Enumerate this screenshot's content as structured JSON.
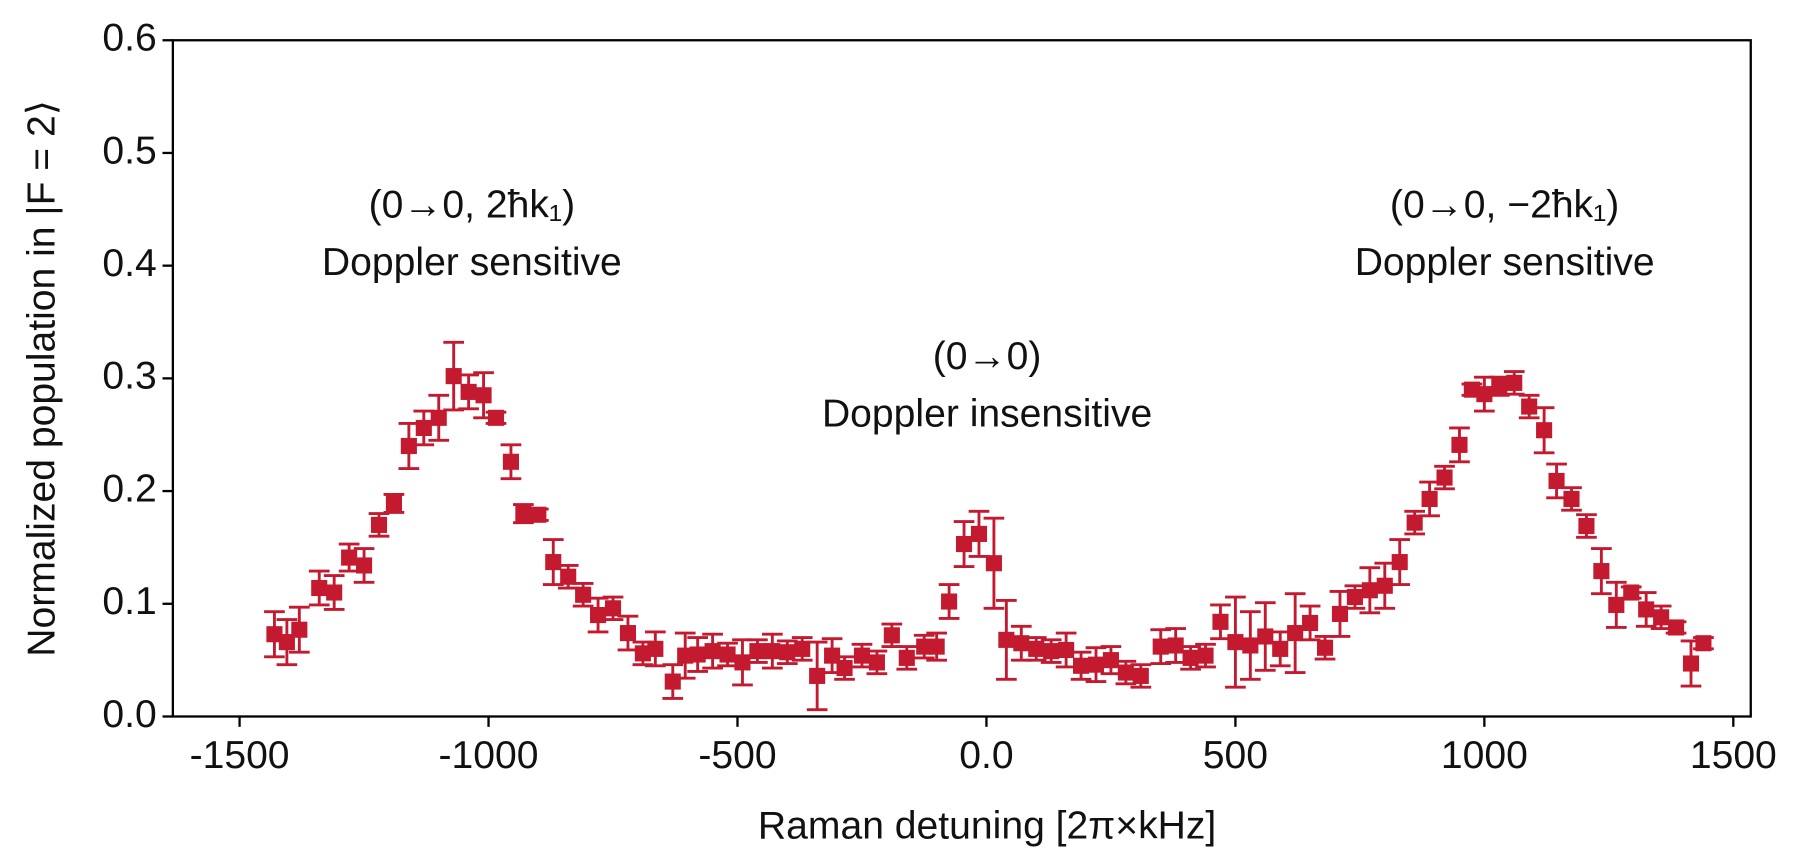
{
  "chart_data": {
    "type": "scatter",
    "xlabel": "Raman detuning [2π×kHz]",
    "ylabel": "Normalized population in |F = 2⟩",
    "annotations": [
      "(0→0, 2ħk₁)",
      "Doppler sensitive",
      "(0→0)",
      "Doppler insensitive",
      "(0→0, −2ħk₁)",
      "Doppler sensitive"
    ],
    "xlim": [
      -1634,
      1535
    ],
    "ylim": [
      0,
      0.6
    ],
    "xticks": [
      -1500,
      -1000,
      -500,
      {
        "value": 0,
        "label": "0.0"
      },
      500,
      1000,
      1500
    ],
    "yticks": [
      {
        "value": 0,
        "label": "0.0"
      },
      0.1,
      0.2,
      0.3,
      0.4,
      0.5,
      0.6
    ],
    "color": "#c41a30",
    "x": [
      -1430,
      -1405,
      -1380,
      -1340,
      -1310,
      -1280,
      -1250,
      -1220,
      -1190,
      -1160,
      -1130,
      -1100,
      -1070,
      -1040,
      -1010,
      -985,
      -955,
      -930,
      -900,
      -870,
      -840,
      -810,
      -780,
      -750,
      -720,
      -690,
      -665,
      -630,
      -605,
      -580,
      -550,
      -520,
      -490,
      -460,
      -430,
      -400,
      -370,
      -340,
      -310,
      -285,
      -250,
      -220,
      -190,
      -160,
      -125,
      -100,
      -75,
      -45,
      -15,
      15,
      40,
      70,
      100,
      130,
      160,
      190,
      220,
      250,
      280,
      310,
      350,
      380,
      410,
      440,
      470,
      500,
      530,
      560,
      590,
      620,
      650,
      680,
      710,
      740,
      770,
      800,
      830,
      860,
      890,
      920,
      950,
      975,
      1000,
      1030,
      1060,
      1090,
      1120,
      1145,
      1175,
      1205,
      1235,
      1265,
      1295,
      1325,
      1355,
      1385,
      1415,
      1440
    ],
    "values": [
      0.073,
      0.066,
      0.077,
      0.114,
      0.11,
      0.141,
      0.134,
      0.17,
      0.189,
      0.24,
      0.256,
      0.265,
      0.302,
      0.288,
      0.285,
      0.265,
      0.226,
      0.18,
      0.179,
      0.137,
      0.124,
      0.108,
      0.09,
      0.096,
      0.074,
      0.056,
      0.06,
      0.031,
      0.054,
      0.055,
      0.058,
      0.055,
      0.048,
      0.058,
      0.058,
      0.057,
      0.06,
      0.036,
      0.054,
      0.043,
      0.054,
      0.048,
      0.072,
      0.052,
      0.062,
      0.062,
      0.102,
      0.153,
      0.162,
      0.136,
      0.068,
      0.065,
      0.06,
      0.058,
      0.059,
      0.045,
      0.046,
      0.05,
      0.039,
      0.036,
      0.062,
      0.063,
      0.052,
      0.054,
      0.084,
      0.066,
      0.063,
      0.071,
      0.06,
      0.074,
      0.083,
      0.061,
      0.091,
      0.106,
      0.112,
      0.116,
      0.137,
      0.172,
      0.193,
      0.212,
      0.241,
      0.29,
      0.286,
      0.293,
      0.296,
      0.275,
      0.254,
      0.209,
      0.193,
      0.169,
      0.129,
      0.099,
      0.11,
      0.095,
      0.088,
      0.079,
      0.047,
      0.065
    ],
    "errors": [
      0.02,
      0.02,
      0.02,
      0.015,
      0.015,
      0.012,
      0.015,
      0.01,
      0.008,
      0.02,
      0.015,
      0.02,
      0.03,
      0.015,
      0.02,
      0.005,
      0.015,
      0.008,
      0.005,
      0.02,
      0.01,
      0.01,
      0.015,
      0.01,
      0.015,
      0.01,
      0.015,
      0.015,
      0.02,
      0.015,
      0.015,
      0.01,
      0.02,
      0.01,
      0.015,
      0.01,
      0.01,
      0.03,
      0.015,
      0.01,
      0.01,
      0.01,
      0.01,
      0.01,
      0.01,
      0.012,
      0.015,
      0.02,
      0.02,
      0.04,
      0.035,
      0.015,
      0.01,
      0.01,
      0.015,
      0.012,
      0.015,
      0.012,
      0.01,
      0.01,
      0.015,
      0.015,
      0.01,
      0.01,
      0.015,
      0.04,
      0.03,
      0.03,
      0.015,
      0.035,
      0.015,
      0.01,
      0.02,
      0.01,
      0.02,
      0.02,
      0.02,
      0.01,
      0.015,
      0.01,
      0.015,
      0.005,
      0.015,
      0.008,
      0.01,
      0.01,
      0.02,
      0.015,
      0.01,
      0.01,
      0.02,
      0.02,
      0.005,
      0.015,
      0.01,
      0.005,
      0.02,
      0.005
    ]
  }
}
